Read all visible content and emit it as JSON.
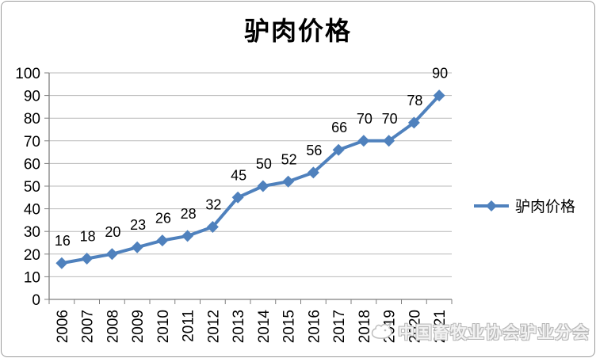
{
  "window": {
    "background": "#ffffff",
    "border_color": "#9a9a9a"
  },
  "chart_data": {
    "type": "line",
    "title": "驴肉价格",
    "categories": [
      "2006",
      "2007",
      "2008",
      "2009",
      "2010",
      "2011",
      "2012",
      "2013",
      "2014",
      "2015",
      "2016",
      "2017",
      "2018",
      "2019",
      "2020",
      "2021"
    ],
    "series": [
      {
        "name": "驴肉价格",
        "values": [
          16,
          18,
          20,
          23,
          26,
          28,
          32,
          45,
          50,
          52,
          56,
          66,
          70,
          70,
          78,
          90
        ]
      }
    ],
    "xlabel": "",
    "ylabel": "",
    "ylim": [
      0,
      100
    ],
    "y_ticks": [
      0,
      10,
      20,
      30,
      40,
      50,
      60,
      70,
      80,
      90,
      100
    ],
    "grid": "horizontal",
    "data_labels": true,
    "legend_position": "right",
    "marker": "diamond",
    "colors": {
      "series": "#4f81bd",
      "gridline": "#b9b9b9",
      "axis": "#7f7f7f",
      "label_text": "#000000"
    }
  },
  "watermark": {
    "text": "中国畜牧业协会驴业分会",
    "icon": "association-logo-icon"
  }
}
